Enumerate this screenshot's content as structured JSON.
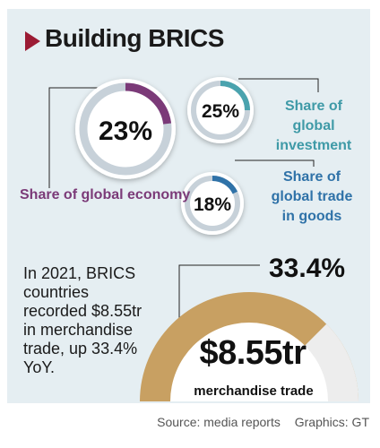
{
  "title": "Building BRICS",
  "colors": {
    "economy": "#7b3a78",
    "investment": "#4aa3ae",
    "trade": "#2f72a8",
    "merchandise": "#c8a062",
    "marker": "#9b1b34"
  },
  "description": "In 2021, BRICS countries recorded $8.55tr in merchandise trade, up 33.4% YoY.",
  "chart_data": [
    {
      "type": "pie",
      "items": [
        {
          "label": "Share of global economy",
          "value": 23,
          "value_label": "23%"
        },
        {
          "label": "Share of global investment",
          "value": 25,
          "value_label": "25%"
        },
        {
          "label": "Share of global trade in goods",
          "value": 18,
          "value_label": "18%"
        }
      ]
    },
    {
      "type": "pie",
      "growth_value": 33.4,
      "growth_label": "33.4%",
      "amount_label": "$8.55tr",
      "amount_caption": "merchandise trade"
    }
  ],
  "labels": {
    "economy": "Share of global economy",
    "investment": "Share of global investment",
    "trade": "Share of global trade in goods"
  },
  "footer": {
    "source": "Source: media reports",
    "graphics": "Graphics: GT"
  }
}
